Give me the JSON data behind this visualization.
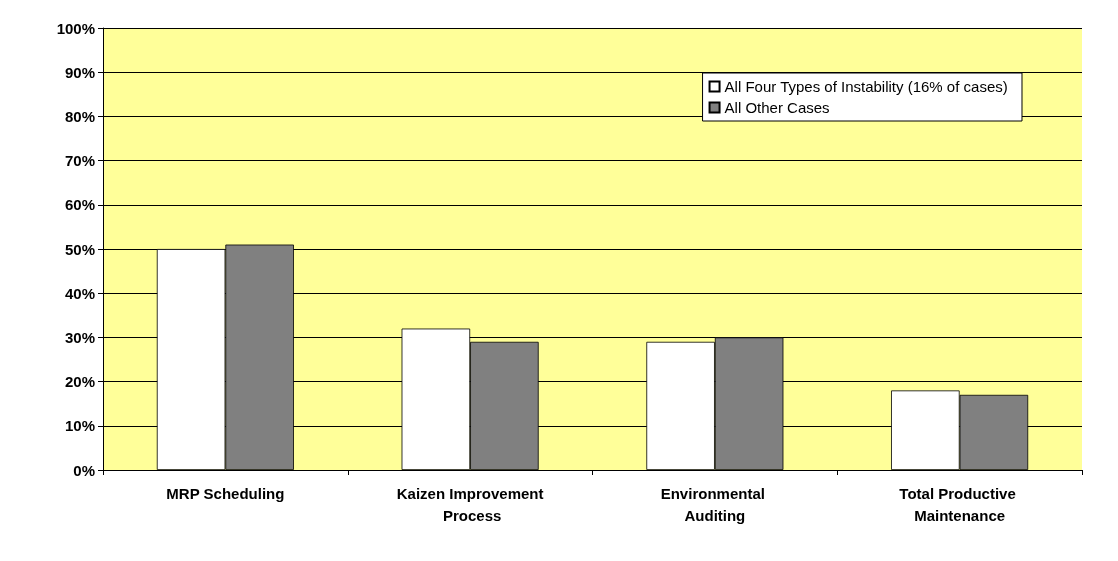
{
  "chart_data": {
    "type": "bar",
    "categories": [
      "MRP Scheduling",
      "Kaizen Improvement Process",
      "Environmental Auditing",
      "Total Productive Maintenance"
    ],
    "series": [
      {
        "name": "All Four Types of Instability (16% of cases)",
        "color": "#ffffff",
        "values": [
          50,
          32,
          29,
          18
        ]
      },
      {
        "name": "All Other Cases",
        "color": "#808080",
        "values": [
          51,
          29,
          30,
          17
        ]
      }
    ],
    "ylim": [
      0,
      100
    ],
    "yticks": [
      {
        "value": 0,
        "label": "0%"
      },
      {
        "value": 10,
        "label": "10%"
      },
      {
        "value": 20,
        "label": "20%"
      },
      {
        "value": 30,
        "label": "30%"
      },
      {
        "value": 40,
        "label": "40%"
      },
      {
        "value": 50,
        "label": "50%"
      },
      {
        "value": 60,
        "label": "60%"
      },
      {
        "value": 70,
        "label": "70%"
      },
      {
        "value": 80,
        "label": "80%"
      },
      {
        "value": 90,
        "label": "90%"
      },
      {
        "value": 100,
        "label": "100%"
      }
    ],
    "grid": "y",
    "legend": "top right"
  }
}
